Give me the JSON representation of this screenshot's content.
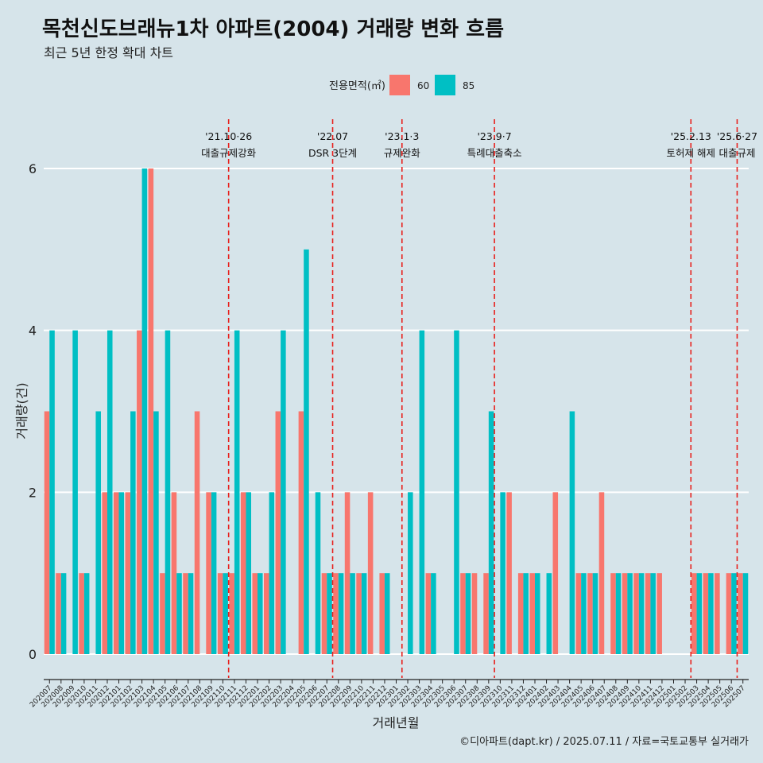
{
  "chart_data": {
    "type": "bar",
    "title": "목천신도브래뉴1차 아파트(2004) 거래량 변화 흐름",
    "subtitle": "최근 5년 한정 확대 차트",
    "xlabel": "거래년월",
    "ylabel": "거래량(건)",
    "ylim": [
      0,
      6
    ],
    "yticks": [
      0,
      2,
      4,
      6
    ],
    "legend": {
      "title": "전용면적(㎡)",
      "position": "top"
    },
    "categories": [
      "202007",
      "202008",
      "202009",
      "202010",
      "202011",
      "202012",
      "202101",
      "202102",
      "202103",
      "202104",
      "202105",
      "202106",
      "202107",
      "202108",
      "202109",
      "202110",
      "202111",
      "202112",
      "202201",
      "202202",
      "202203",
      "202204",
      "202205",
      "202206",
      "202207",
      "202208",
      "202209",
      "202210",
      "202211",
      "202212",
      "202301",
      "202302",
      "202303",
      "202304",
      "202305",
      "202306",
      "202307",
      "202308",
      "202309",
      "202310",
      "202311",
      "202312",
      "202401",
      "202402",
      "202403",
      "202404",
      "202405",
      "202406",
      "202407",
      "202408",
      "202409",
      "202410",
      "202411",
      "202412",
      "202501",
      "202502",
      "202503",
      "202504",
      "202505",
      "202506",
      "202507"
    ],
    "series": [
      {
        "name": "60",
        "color": "#f8766d",
        "values": [
          3,
          1,
          0,
          1,
          0,
          2,
          2,
          2,
          4,
          6,
          1,
          2,
          1,
          3,
          2,
          1,
          1,
          2,
          1,
          1,
          3,
          0,
          3,
          0,
          1,
          1,
          2,
          1,
          2,
          1,
          0,
          0,
          0,
          1,
          0,
          0,
          1,
          1,
          1,
          0,
          2,
          1,
          1,
          0,
          2,
          0,
          1,
          1,
          2,
          1,
          1,
          1,
          1,
          1,
          0,
          0,
          1,
          1,
          1,
          1,
          1
        ]
      },
      {
        "name": "85",
        "color": "#00bfc4",
        "values": [
          4,
          1,
          4,
          1,
          3,
          4,
          2,
          3,
          6,
          3,
          4,
          1,
          1,
          0,
          2,
          1,
          4,
          2,
          1,
          2,
          4,
          0,
          5,
          2,
          1,
          1,
          1,
          1,
          0,
          1,
          0,
          2,
          4,
          1,
          0,
          4,
          1,
          0,
          3,
          2,
          0,
          1,
          1,
          1,
          0,
          3,
          1,
          1,
          0,
          1,
          1,
          1,
          1,
          0,
          0,
          0,
          1,
          1,
          0,
          1,
          1
        ]
      }
    ],
    "annotations": [
      {
        "after": "202110",
        "date": "'21.10·26",
        "label": "대출규제강화"
      },
      {
        "after": "202207",
        "date": "'22.07",
        "label": "DSR 3단계"
      },
      {
        "after": "202301",
        "date": "'23.1·3",
        "label": "규제완화"
      },
      {
        "after": "202309",
        "date": "'23.9·7",
        "label": "특례대출축소"
      },
      {
        "after": "202502",
        "date": "'25.2.13",
        "label": "토허제 해제"
      },
      {
        "after": "202506",
        "date": "'25.6·27",
        "label": "대출규제"
      }
    ]
  },
  "caption": "©디아파트(dapt.kr) / 2025.07.11 / 자료=국토교통부 실거래가"
}
